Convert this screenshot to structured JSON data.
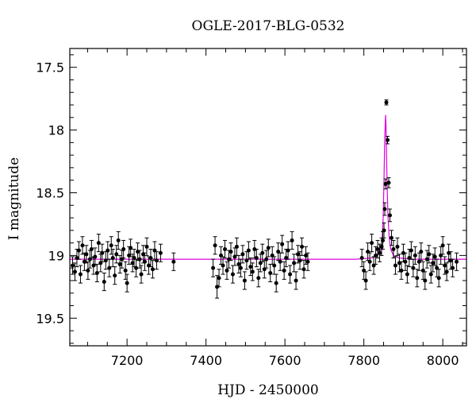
{
  "chart_data": {
    "type": "scatter",
    "title": "OGLE-2017-BLG-0532",
    "xlabel": "HJD - 2450000",
    "ylabel": "I magnitude",
    "xlim": [
      7055,
      8060
    ],
    "ylim": [
      19.72,
      17.35
    ],
    "y_inverted": true,
    "x_major_ticks": [
      7200,
      7400,
      7600,
      7800,
      8000
    ],
    "x_tick_labels": [
      "7200",
      "7400",
      "7600",
      "7800",
      "8000"
    ],
    "y_major_ticks": [
      17.5,
      18,
      18.5,
      19,
      19.5
    ],
    "y_tick_labels": [
      "17.5",
      "18",
      "18.5",
      "19",
      "19.5"
    ],
    "x_minor_step": 50,
    "y_minor_step": 0.1,
    "grid": false,
    "legend": "none",
    "colors": {
      "points": "#000000",
      "model": "#e000e0"
    },
    "series": [
      {
        "style": "points-with-errorbars",
        "x": [
          7062,
          7068,
          7073,
          7078,
          7082,
          7087,
          7092,
          7097,
          7101,
          7106,
          7110,
          7115,
          7119,
          7124,
          7128,
          7133,
          7137,
          7142,
          7146,
          7151,
          7155,
          7160,
          7164,
          7169,
          7173,
          7178,
          7182,
          7187,
          7191,
          7196,
          7200,
          7205,
          7209,
          7214,
          7218,
          7223,
          7227,
          7232,
          7236,
          7241,
          7245,
          7250,
          7255,
          7260,
          7265,
          7270,
          7275,
          7285,
          7318,
          7418,
          7423,
          7428,
          7433,
          7438,
          7443,
          7448,
          7453,
          7458,
          7463,
          7468,
          7473,
          7478,
          7483,
          7488,
          7493,
          7498,
          7503,
          7508,
          7513,
          7518,
          7523,
          7528,
          7533,
          7538,
          7543,
          7548,
          7553,
          7558,
          7563,
          7568,
          7573,
          7578,
          7583,
          7588,
          7593,
          7598,
          7603,
          7608,
          7613,
          7618,
          7623,
          7628,
          7633,
          7638,
          7643,
          7648,
          7653,
          7658,
          7795,
          7800,
          7805,
          7810,
          7815,
          7820,
          7825,
          7830,
          7835,
          7840,
          7845,
          7848,
          7851,
          7853,
          7855,
          7857,
          7860,
          7863,
          7866,
          7870,
          7875,
          7880,
          7885,
          7890,
          7895,
          7900,
          7905,
          7910,
          7915,
          7920,
          7925,
          7930,
          7935,
          7940,
          7945,
          7950,
          7955,
          7960,
          7965,
          7970,
          7975,
          7980,
          7985,
          7990,
          7995,
          8000,
          8005,
          8010,
          8015,
          8020,
          8025,
          8035
        ],
        "y": [
          19.08,
          19.13,
          19.02,
          18.96,
          19.15,
          18.92,
          19.05,
          18.99,
          19.12,
          19.03,
          18.95,
          19.08,
          19.01,
          19.14,
          18.9,
          19.06,
          18.98,
          19.21,
          19.04,
          18.96,
          19.1,
          18.92,
          19.02,
          19.16,
          18.99,
          18.88,
          19.07,
          19.03,
          18.95,
          19.12,
          19.22,
          19.0,
          18.94,
          19.06,
          19.02,
          19.1,
          18.97,
          19.03,
          19.15,
          18.99,
          19.05,
          18.93,
          19.08,
          19.02,
          19.11,
          18.96,
          19.04,
          18.98,
          19.05,
          19.1,
          18.92,
          19.25,
          19.18,
          19.0,
          19.08,
          18.95,
          19.12,
          19.03,
          18.97,
          19.15,
          19.01,
          18.93,
          19.07,
          19.1,
          18.99,
          19.2,
          19.04,
          18.96,
          19.09,
          19.13,
          18.95,
          19.02,
          19.18,
          19.06,
          18.98,
          19.11,
          19.03,
          18.94,
          19.14,
          19.0,
          19.08,
          19.22,
          18.97,
          19.05,
          18.91,
          19.12,
          19.02,
          18.96,
          19.15,
          18.88,
          19.06,
          19.2,
          18.99,
          19.04,
          18.93,
          19.11,
          19.0,
          19.05,
          19.02,
          19.12,
          19.2,
          18.97,
          19.05,
          18.9,
          19.08,
          19.0,
          18.95,
          18.98,
          18.93,
          18.88,
          18.8,
          18.63,
          18.43,
          17.78,
          18.08,
          18.42,
          18.68,
          18.86,
          18.95,
          19.08,
          18.93,
          19.06,
          19.12,
          18.98,
          19.05,
          19.15,
          19.02,
          18.96,
          19.1,
          19.0,
          19.18,
          19.05,
          18.97,
          19.12,
          19.2,
          19.03,
          18.99,
          19.15,
          19.06,
          19.01,
          19.1,
          19.18,
          19.0,
          18.92,
          19.08,
          19.13,
          18.98,
          19.04,
          19.1,
          19.05
        ],
        "yerr": [
          0.07,
          0.07,
          0.07,
          0.07,
          0.07,
          0.07,
          0.07,
          0.07,
          0.07,
          0.07,
          0.07,
          0.07,
          0.07,
          0.07,
          0.07,
          0.07,
          0.07,
          0.07,
          0.07,
          0.07,
          0.07,
          0.07,
          0.07,
          0.07,
          0.07,
          0.07,
          0.07,
          0.07,
          0.07,
          0.07,
          0.07,
          0.07,
          0.07,
          0.07,
          0.07,
          0.07,
          0.07,
          0.07,
          0.07,
          0.07,
          0.07,
          0.07,
          0.07,
          0.07,
          0.07,
          0.07,
          0.07,
          0.07,
          0.07,
          0.07,
          0.07,
          0.09,
          0.07,
          0.07,
          0.07,
          0.07,
          0.07,
          0.07,
          0.07,
          0.07,
          0.07,
          0.07,
          0.07,
          0.07,
          0.07,
          0.07,
          0.07,
          0.07,
          0.07,
          0.07,
          0.07,
          0.07,
          0.07,
          0.07,
          0.07,
          0.07,
          0.07,
          0.07,
          0.07,
          0.07,
          0.07,
          0.07,
          0.07,
          0.07,
          0.07,
          0.07,
          0.07,
          0.07,
          0.07,
          0.07,
          0.07,
          0.07,
          0.07,
          0.07,
          0.07,
          0.07,
          0.07,
          0.07,
          0.07,
          0.07,
          0.07,
          0.07,
          0.07,
          0.07,
          0.07,
          0.07,
          0.07,
          0.07,
          0.07,
          0.07,
          0.06,
          0.05,
          0.04,
          0.02,
          0.03,
          0.04,
          0.05,
          0.06,
          0.07,
          0.07,
          0.07,
          0.07,
          0.07,
          0.07,
          0.07,
          0.07,
          0.07,
          0.07,
          0.07,
          0.07,
          0.07,
          0.07,
          0.07,
          0.07,
          0.07,
          0.07,
          0.07,
          0.07,
          0.07,
          0.07,
          0.07,
          0.07,
          0.07,
          0.07,
          0.07,
          0.07,
          0.07,
          0.07,
          0.07,
          0.07
        ]
      },
      {
        "style": "model-line",
        "x": [
          7055,
          7700,
          7780,
          7820,
          7835,
          7842,
          7846,
          7849,
          7851,
          7853,
          7855,
          7856,
          7857,
          7859,
          7861,
          7864,
          7868,
          7875,
          7890,
          7920,
          8060
        ],
        "y": [
          19.03,
          19.03,
          19.03,
          19.02,
          19.0,
          18.96,
          18.88,
          18.7,
          18.4,
          18.05,
          17.88,
          17.95,
          18.12,
          18.45,
          18.68,
          18.85,
          18.95,
          19.0,
          19.02,
          19.03,
          19.03
        ]
      }
    ]
  }
}
